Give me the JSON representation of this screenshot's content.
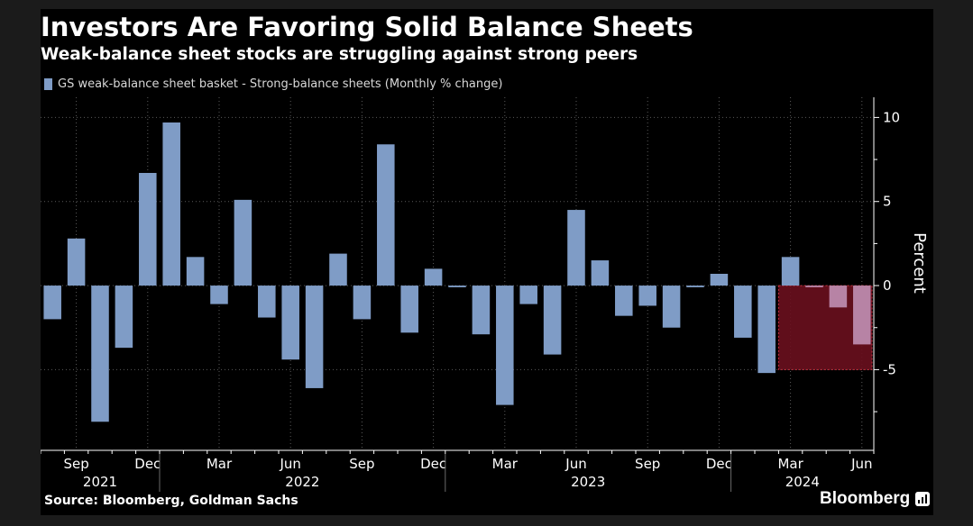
{
  "header": {
    "title": "Investors Are Favoring Solid Balance Sheets",
    "subtitle": "Weak-balance sheet stocks are struggling against strong peers"
  },
  "footer": {
    "source": "Source: Bloomberg, Goldman Sachs",
    "brand": "Bloomberg",
    "brand_icon": "bloomberg-terminal-icon"
  },
  "colors": {
    "background": "#000000",
    "bar": "#7f9cc6",
    "highlight_bar": "#b783a5",
    "highlight_fill": "#6a0f1e",
    "highlight_border": "#c8303f",
    "grid": "#5a5a5a",
    "text": "#ffffff"
  },
  "chart_data": {
    "type": "bar",
    "legend": [
      "GS weak-balance sheet basket - Strong-balance sheets (Monthly % change)"
    ],
    "legend_position": "top-left",
    "ylabel": "Percent",
    "xlabel": "",
    "ylim": [
      -9.8,
      11.2
    ],
    "yticks": [
      10,
      5,
      0,
      -5
    ],
    "y_axis_side": "right",
    "grid": true,
    "series": [
      {
        "name": "GS weak-balance sheet basket - Strong-balance sheets (Monthly % change)",
        "x": [
          "2021-08",
          "2021-09",
          "2021-10",
          "2021-11",
          "2021-12",
          "2022-01",
          "2022-02",
          "2022-03",
          "2022-04",
          "2022-05",
          "2022-06",
          "2022-07",
          "2022-08",
          "2022-09",
          "2022-10",
          "2022-11",
          "2022-12",
          "2023-01",
          "2023-02",
          "2023-03",
          "2023-04",
          "2023-05",
          "2023-06",
          "2023-07",
          "2023-08",
          "2023-09",
          "2023-10",
          "2023-11",
          "2023-12",
          "2024-01",
          "2024-02",
          "2024-03",
          "2024-04",
          "2024-05",
          "2024-06"
        ],
        "values": [
          -2.0,
          2.8,
          -8.1,
          -3.7,
          6.7,
          9.7,
          1.7,
          -1.1,
          5.1,
          -1.9,
          -4.4,
          -6.1,
          1.9,
          -2.0,
          8.4,
          -2.8,
          1.0,
          -0.1,
          -2.9,
          -7.1,
          -1.1,
          -4.1,
          4.5,
          1.5,
          -1.8,
          -1.2,
          -2.5,
          -0.1,
          0.7,
          -3.1,
          -5.2,
          1.7,
          -0.1,
          -1.3,
          -3.5
        ]
      }
    ],
    "month_ticks": [
      {
        "x": "2021-09",
        "label": "Sep"
      },
      {
        "x": "2021-12",
        "label": "Dec"
      },
      {
        "x": "2022-03",
        "label": "Mar"
      },
      {
        "x": "2022-06",
        "label": "Jun"
      },
      {
        "x": "2022-09",
        "label": "Sep"
      },
      {
        "x": "2022-12",
        "label": "Dec"
      },
      {
        "x": "2023-03",
        "label": "Mar"
      },
      {
        "x": "2023-06",
        "label": "Jun"
      },
      {
        "x": "2023-09",
        "label": "Sep"
      },
      {
        "x": "2023-12",
        "label": "Dec"
      },
      {
        "x": "2024-03",
        "label": "Mar"
      },
      {
        "x": "2024-06",
        "label": "Jun"
      }
    ],
    "year_labels": [
      "2021",
      "2022",
      "2023",
      "2024"
    ],
    "highlight": {
      "x_start": "2024-03",
      "x_end": "2024-06",
      "y_range": [
        -5,
        0
      ]
    }
  }
}
